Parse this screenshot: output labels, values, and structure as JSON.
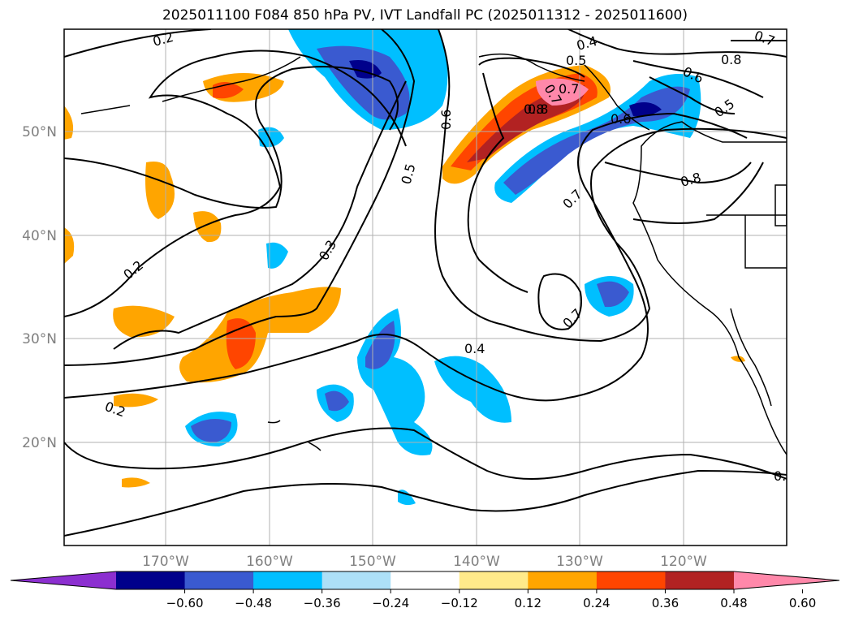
{
  "title": "2025011100 F084 850 hPa PV, IVT Landfall PC (2025011312 - 2025011600)",
  "map": {
    "lon_labels": [
      "170°W",
      "160°W",
      "150°W",
      "140°W",
      "130°W",
      "120°W"
    ],
    "lat_labels": [
      "50°N",
      "40°N",
      "30°N",
      "20°N"
    ],
    "grid_color": "#b0b0b0",
    "tick_label_color": "#808080"
  },
  "contour_labels": [
    "0.2",
    "0.4",
    "0.7",
    "0.5",
    "0.7",
    "0.8",
    "0.6",
    "0.5",
    "0.7",
    "0.6",
    "0.8",
    "0.5",
    "0.7",
    "0.8",
    "0.3",
    "0.2",
    "0.2",
    "0.4",
    "0.7",
    "0.6",
    "0.8",
    "0.2"
  ],
  "colorbar": {
    "colors": [
      "#8c2fd0",
      "#00008b",
      "#3a5ad0",
      "#00bfff",
      "#ade0f7",
      "#ffffff",
      "#ffea8a",
      "#ffa500",
      "#ff4500",
      "#b22222",
      "#ff88aa"
    ],
    "tick_labels": [
      "−0.60",
      "−0.48",
      "−0.36",
      "−0.24",
      "−0.12",
      "0.12",
      "0.24",
      "0.36",
      "0.48",
      "0.60"
    ]
  }
}
